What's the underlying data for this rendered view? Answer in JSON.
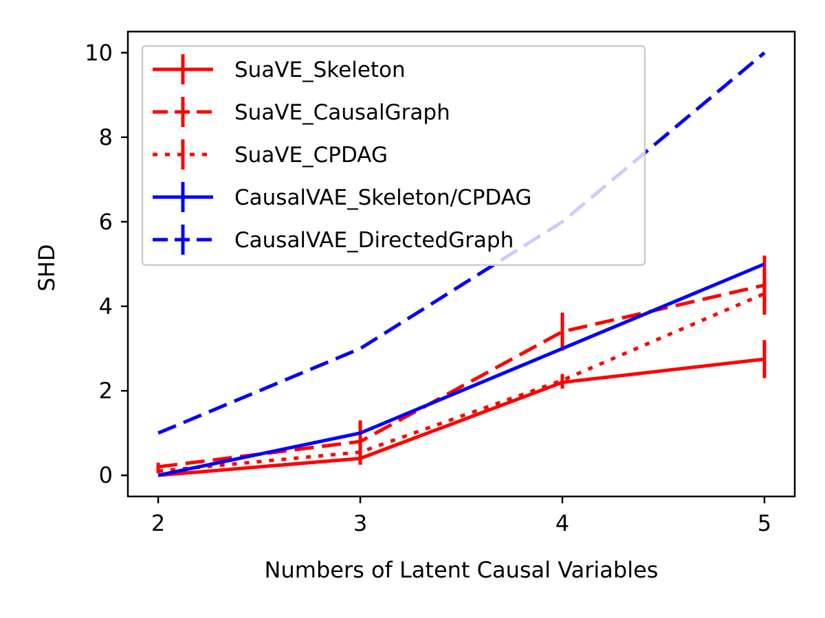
{
  "chart_data": {
    "type": "line",
    "title": "",
    "xlabel": "Numbers of Latent Causal Variables",
    "ylabel": "SHD",
    "x": [
      2,
      3,
      4,
      5
    ],
    "xticks": [
      2,
      3,
      4,
      5
    ],
    "xtick_labels": [
      "2",
      "3",
      "4",
      "5"
    ],
    "yticks": [
      0,
      2,
      4,
      6,
      8,
      10
    ],
    "ytick_labels": [
      "0",
      "2",
      "4",
      "6",
      "8",
      "10"
    ],
    "xlim": [
      1.85,
      5.15
    ],
    "ylim": [
      -0.5,
      10.5
    ],
    "grid": false,
    "legend_position": "upper-left",
    "series": [
      {
        "name": "SuaVE_Skeleton",
        "color": "#ff0000",
        "linestyle": "solid",
        "values": [
          0,
          0.4,
          2.2,
          2.75
        ],
        "errors": [
          0,
          0.15,
          0.15,
          0.45
        ]
      },
      {
        "name": "SuaVE_CausalGraph",
        "color": "#ff0000",
        "linestyle": "dashed",
        "values": [
          0.2,
          0.8,
          3.4,
          4.5
        ],
        "errors": [
          0.1,
          0.5,
          0.45,
          0.7
        ]
      },
      {
        "name": "SuaVE_CPDAG",
        "color": "#ff0000",
        "linestyle": "dotted",
        "values": [
          0.1,
          0.55,
          2.25,
          4.3
        ],
        "errors": [
          0.05,
          0.2,
          0.15,
          0.3
        ]
      },
      {
        "name": "CausalVAE_Skeleton/CPDAG",
        "color": "#0000ff",
        "linestyle": "solid",
        "values": [
          0,
          1,
          3,
          5
        ],
        "errors": [
          0,
          0,
          0,
          0
        ]
      },
      {
        "name": "CausalVAE_DirectedGraph",
        "color": "#0000ff",
        "linestyle": "dashed",
        "values": [
          1,
          3,
          6,
          10
        ],
        "errors": [
          0,
          0,
          0,
          0
        ]
      }
    ]
  }
}
